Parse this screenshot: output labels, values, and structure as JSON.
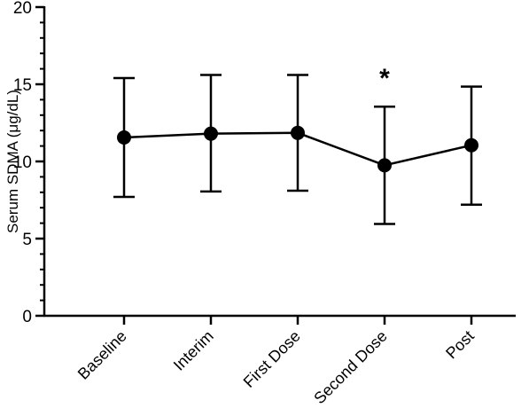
{
  "chart_data": {
    "type": "line",
    "title": "",
    "xlabel": "",
    "ylabel": "Serum SDMA (μg/dL)",
    "ylim": [
      0,
      20
    ],
    "yticks": [
      0,
      5,
      10,
      15,
      20
    ],
    "categories": [
      "Baseline",
      "Interim",
      "First Dose",
      "Second Dose",
      "Post"
    ],
    "series": [
      {
        "values": [
          11.55,
          11.8,
          11.85,
          9.75,
          11.05
        ],
        "error_low": [
          7.7,
          8.05,
          8.1,
          5.95,
          7.2
        ],
        "error_high": [
          15.4,
          15.6,
          15.6,
          13.55,
          14.85
        ]
      }
    ],
    "annotations": [
      {
        "category": "Second Dose",
        "text": "*"
      }
    ],
    "grid": false,
    "legend": "none",
    "colors": {
      "series": "#000000",
      "axis": "#000000"
    }
  }
}
